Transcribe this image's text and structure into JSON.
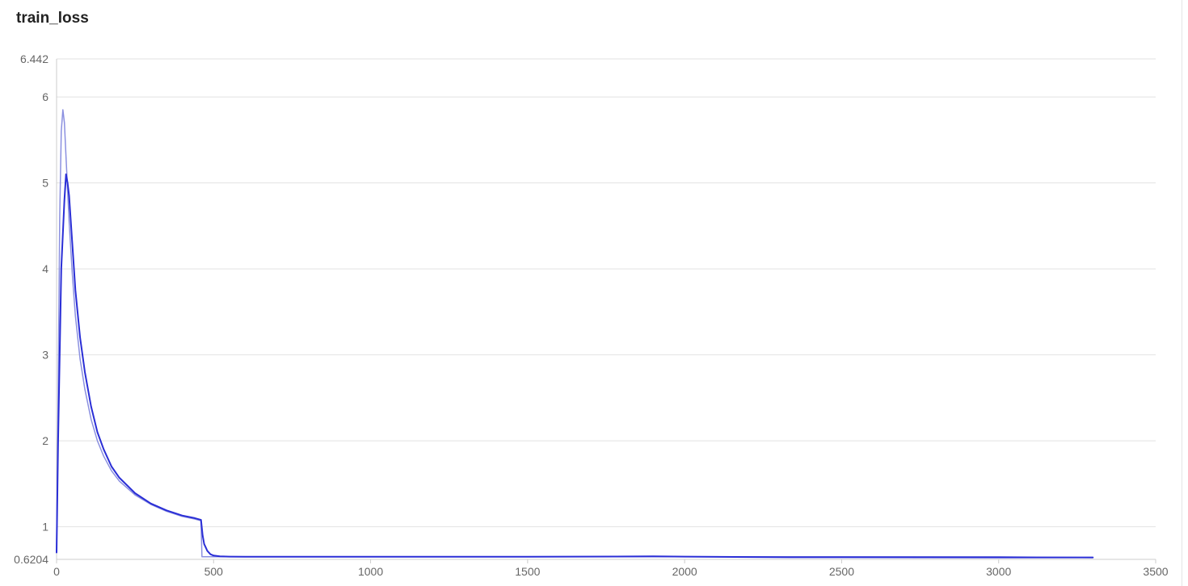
{
  "panel": {
    "title": "train_loss"
  },
  "colors": {
    "raw_line": "#8b90e0",
    "smoothed_line": "#2a2ed6",
    "grid": "#e2e2e2",
    "axis": "#cccccc",
    "tick_text": "#666666"
  },
  "chart_data": {
    "type": "line",
    "title": "train_loss",
    "xlabel": "",
    "ylabel": "",
    "xlim": [
      0,
      3500
    ],
    "ylim": [
      0.6204,
      6.442
    ],
    "x_ticks": [
      0,
      500,
      1000,
      1500,
      2000,
      2500,
      3000,
      3500
    ],
    "y_ticks": [
      0.6204,
      1,
      2,
      3,
      4,
      5,
      6,
      6.442
    ],
    "y_tick_labels": [
      "0.6204",
      "1",
      "2",
      "3",
      "4",
      "5",
      "6",
      "6.442"
    ],
    "grid": true,
    "legend": "none",
    "series": [
      {
        "style": "raw",
        "x": [
          0,
          5,
          10,
          15,
          20,
          25,
          30,
          40,
          50,
          60,
          75,
          90,
          110,
          130,
          150,
          175,
          200,
          250,
          300,
          350,
          400,
          440,
          460,
          463,
          470,
          480,
          500,
          550,
          600,
          800,
          1000,
          1500,
          2000,
          2500,
          3000,
          3300
        ],
        "y": [
          0.7,
          2.5,
          4.6,
          5.6,
          5.85,
          5.7,
          5.3,
          4.55,
          3.95,
          3.45,
          2.95,
          2.6,
          2.25,
          2.0,
          1.82,
          1.65,
          1.53,
          1.37,
          1.26,
          1.18,
          1.12,
          1.09,
          1.07,
          0.65,
          0.65,
          0.65,
          0.65,
          0.65,
          0.65,
          0.65,
          0.65,
          0.65,
          0.65,
          0.65,
          0.65,
          0.64
        ]
      },
      {
        "style": "smoothed",
        "x": [
          0,
          5,
          15,
          25,
          30,
          35,
          40,
          50,
          60,
          75,
          90,
          110,
          130,
          150,
          175,
          200,
          250,
          300,
          350,
          400,
          440,
          460,
          465,
          470,
          480,
          490,
          500,
          520,
          550,
          600,
          800,
          1000,
          1500,
          1900,
          2000,
          2330,
          2500,
          3000,
          3300
        ],
        "y": [
          0.7,
          2.0,
          4.0,
          4.8,
          5.1,
          5.0,
          4.85,
          4.3,
          3.75,
          3.2,
          2.8,
          2.4,
          2.1,
          1.9,
          1.7,
          1.57,
          1.39,
          1.27,
          1.19,
          1.13,
          1.1,
          1.08,
          0.9,
          0.8,
          0.72,
          0.68,
          0.665,
          0.655,
          0.652,
          0.651,
          0.651,
          0.651,
          0.65,
          0.655,
          0.652,
          0.645,
          0.645,
          0.643,
          0.643
        ]
      }
    ]
  }
}
